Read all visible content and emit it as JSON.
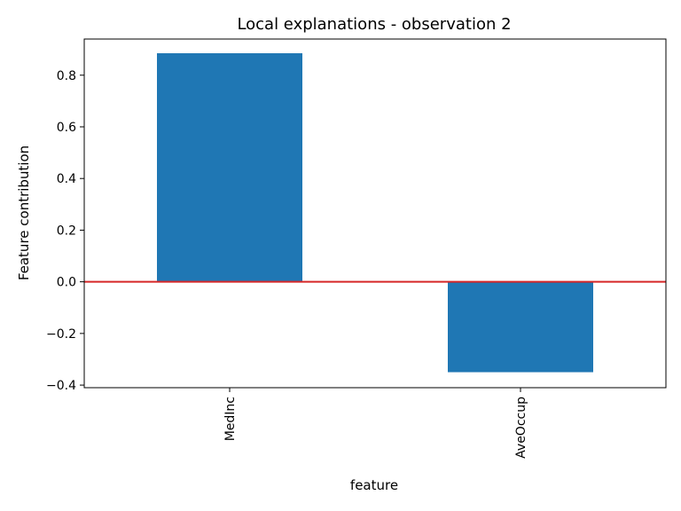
{
  "chart_data": {
    "type": "bar",
    "title": "Local explanations - observation 2",
    "xlabel": "feature",
    "ylabel": "Feature contribution",
    "categories": [
      "MedInc",
      "AveOccup"
    ],
    "values": [
      0.885,
      -0.35
    ],
    "ylim": [
      -0.41,
      0.94
    ],
    "yticks": [
      -0.4,
      -0.2,
      0.0,
      0.2,
      0.4,
      0.6,
      0.8
    ],
    "ytick_labels": [
      "−0.4",
      "−0.2",
      "0.0",
      "0.2",
      "0.4",
      "0.6",
      "0.8"
    ],
    "reference_line": {
      "y": 0.0,
      "color": "#d62728"
    },
    "bar_color": "#1f77b4",
    "grid": false,
    "legend": "none",
    "xtick_rotation": "vertical"
  }
}
